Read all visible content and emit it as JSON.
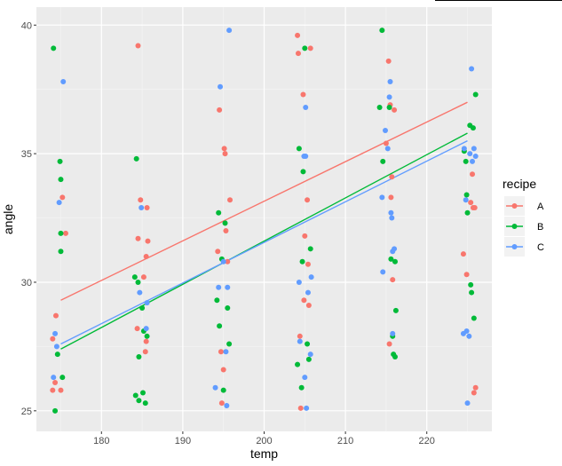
{
  "chart_data": {
    "type": "scatter",
    "title": "",
    "xlabel": "temp",
    "ylabel": "angle",
    "xlim": [
      172,
      228
    ],
    "ylim": [
      24.2,
      40.7
    ],
    "x_ticks": [
      180,
      190,
      200,
      210,
      220
    ],
    "y_ticks": [
      25,
      30,
      35,
      40
    ],
    "grid": true,
    "legend_title": "recipe",
    "legend_position": "right",
    "series": [
      {
        "name": "A",
        "color": "#F8766D",
        "points": [
          [
            174.0,
            25.8
          ],
          [
            174.3,
            26.1
          ],
          [
            174.0,
            27.8
          ],
          [
            174.4,
            28.7
          ],
          [
            175.0,
            25.8
          ],
          [
            175.2,
            33.3
          ],
          [
            175.6,
            31.9
          ],
          [
            184.4,
            28.2
          ],
          [
            184.5,
            39.2
          ],
          [
            184.5,
            31.7
          ],
          [
            184.8,
            33.2
          ],
          [
            185.2,
            30.2
          ],
          [
            185.5,
            27.7
          ],
          [
            185.4,
            27.3
          ],
          [
            185.5,
            31.0
          ],
          [
            185.6,
            32.9
          ],
          [
            185.7,
            31.6
          ],
          [
            194.3,
            31.2
          ],
          [
            194.5,
            36.7
          ],
          [
            194.7,
            27.3
          ],
          [
            194.8,
            25.3
          ],
          [
            195.0,
            26.6
          ],
          [
            195.1,
            35.2
          ],
          [
            195.2,
            35.0
          ],
          [
            195.3,
            32.0
          ],
          [
            195.5,
            30.8
          ],
          [
            195.8,
            33.2
          ],
          [
            204.1,
            39.6
          ],
          [
            204.2,
            38.9
          ],
          [
            204.4,
            27.9
          ],
          [
            204.5,
            25.1
          ],
          [
            204.8,
            37.3
          ],
          [
            204.9,
            29.3
          ],
          [
            205.0,
            31.8
          ],
          [
            205.3,
            33.2
          ],
          [
            205.4,
            30.7
          ],
          [
            205.5,
            29.1
          ],
          [
            205.7,
            39.1
          ],
          [
            215.0,
            35.4
          ],
          [
            215.3,
            38.6
          ],
          [
            215.4,
            27.6
          ],
          [
            215.5,
            36.9
          ],
          [
            215.6,
            33.3
          ],
          [
            215.7,
            34.1
          ],
          [
            215.8,
            30.1
          ],
          [
            216.0,
            36.7
          ],
          [
            224.5,
            31.1
          ],
          [
            224.9,
            30.3
          ],
          [
            225.4,
            33.1
          ],
          [
            225.6,
            34.2
          ],
          [
            225.7,
            32.9
          ],
          [
            225.8,
            25.7
          ],
          [
            225.9,
            32.9
          ],
          [
            226.0,
            25.9
          ]
        ]
      },
      {
        "name": "B",
        "color": "#00BA38",
        "points": [
          [
            174.1,
            39.1
          ],
          [
            174.3,
            25.0
          ],
          [
            174.6,
            27.2
          ],
          [
            174.9,
            34.7
          ],
          [
            175.0,
            34.0
          ],
          [
            175.0,
            31.9
          ],
          [
            175.0,
            31.2
          ],
          [
            175.2,
            26.3
          ],
          [
            184.1,
            30.2
          ],
          [
            184.2,
            25.6
          ],
          [
            184.3,
            34.8
          ],
          [
            184.5,
            30.0
          ],
          [
            184.6,
            27.1
          ],
          [
            184.6,
            25.4
          ],
          [
            185.0,
            29.0
          ],
          [
            185.1,
            25.7
          ],
          [
            185.2,
            28.1
          ],
          [
            185.4,
            25.3
          ],
          [
            185.6,
            27.9
          ],
          [
            194.2,
            29.3
          ],
          [
            194.4,
            32.7
          ],
          [
            194.5,
            28.3
          ],
          [
            194.8,
            30.9
          ],
          [
            195.0,
            25.8
          ],
          [
            195.2,
            32.3
          ],
          [
            195.5,
            29.0
          ],
          [
            195.7,
            27.6
          ],
          [
            204.1,
            26.8
          ],
          [
            204.3,
            35.2
          ],
          [
            204.6,
            25.9
          ],
          [
            204.7,
            30.8
          ],
          [
            204.8,
            34.3
          ],
          [
            205.0,
            39.1
          ],
          [
            205.3,
            27.6
          ],
          [
            205.5,
            27.0
          ],
          [
            205.7,
            31.3
          ],
          [
            214.2,
            36.8
          ],
          [
            214.5,
            39.8
          ],
          [
            214.6,
            34.7
          ],
          [
            215.4,
            36.8
          ],
          [
            215.6,
            30.9
          ],
          [
            215.8,
            27.9
          ],
          [
            215.9,
            27.2
          ],
          [
            216.1,
            27.1
          ],
          [
            216.2,
            28.9
          ],
          [
            216.1,
            30.8
          ],
          [
            224.6,
            35.1
          ],
          [
            224.8,
            34.7
          ],
          [
            224.9,
            33.4
          ],
          [
            225.0,
            32.7
          ],
          [
            225.3,
            36.1
          ],
          [
            225.4,
            29.9
          ],
          [
            225.5,
            29.6
          ],
          [
            225.7,
            36.0
          ],
          [
            225.8,
            28.6
          ],
          [
            226.0,
            37.3
          ]
        ]
      },
      {
        "name": "C",
        "color": "#619CFF",
        "points": [
          [
            174.1,
            26.3
          ],
          [
            174.3,
            28.0
          ],
          [
            174.5,
            27.5
          ],
          [
            174.8,
            33.1
          ],
          [
            175.3,
            37.8
          ],
          [
            184.7,
            29.6
          ],
          [
            184.9,
            32.9
          ],
          [
            185.5,
            28.2
          ],
          [
            185.6,
            29.2
          ],
          [
            194.0,
            25.9
          ],
          [
            194.4,
            29.8
          ],
          [
            194.6,
            37.6
          ],
          [
            195.0,
            30.8
          ],
          [
            195.3,
            27.3
          ],
          [
            195.4,
            25.2
          ],
          [
            195.5,
            29.8
          ],
          [
            195.7,
            39.8
          ],
          [
            204.3,
            30.0
          ],
          [
            204.4,
            27.7
          ],
          [
            204.9,
            34.9
          ],
          [
            205.0,
            26.3
          ],
          [
            205.1,
            34.9
          ],
          [
            205.1,
            36.8
          ],
          [
            205.2,
            25.1
          ],
          [
            205.4,
            29.6
          ],
          [
            205.7,
            27.2
          ],
          [
            205.8,
            30.2
          ],
          [
            214.5,
            33.3
          ],
          [
            214.6,
            30.4
          ],
          [
            214.9,
            35.9
          ],
          [
            215.2,
            35.2
          ],
          [
            215.4,
            37.2
          ],
          [
            215.5,
            37.8
          ],
          [
            215.6,
            32.7
          ],
          [
            215.7,
            32.5
          ],
          [
            215.8,
            31.2
          ],
          [
            215.8,
            28.0
          ],
          [
            216.0,
            31.3
          ],
          [
            224.5,
            28.0
          ],
          [
            224.6,
            35.2
          ],
          [
            224.8,
            33.2
          ],
          [
            224.9,
            28.1
          ],
          [
            225.0,
            25.3
          ],
          [
            225.2,
            27.9
          ],
          [
            225.3,
            35.0
          ],
          [
            225.5,
            38.3
          ],
          [
            225.6,
            34.7
          ],
          [
            225.8,
            35.2
          ],
          [
            226.0,
            34.9
          ]
        ]
      }
    ],
    "trend_lines": [
      {
        "series": "A",
        "color": "#F8766D",
        "x": [
          175,
          225
        ],
        "y": [
          29.3,
          37.0
        ]
      },
      {
        "series": "B",
        "color": "#00BA38",
        "x": [
          175,
          225
        ],
        "y": [
          27.4,
          35.8
        ]
      },
      {
        "series": "C",
        "color": "#619CFF",
        "x": [
          175,
          225
        ],
        "y": [
          27.6,
          35.5
        ]
      }
    ]
  }
}
